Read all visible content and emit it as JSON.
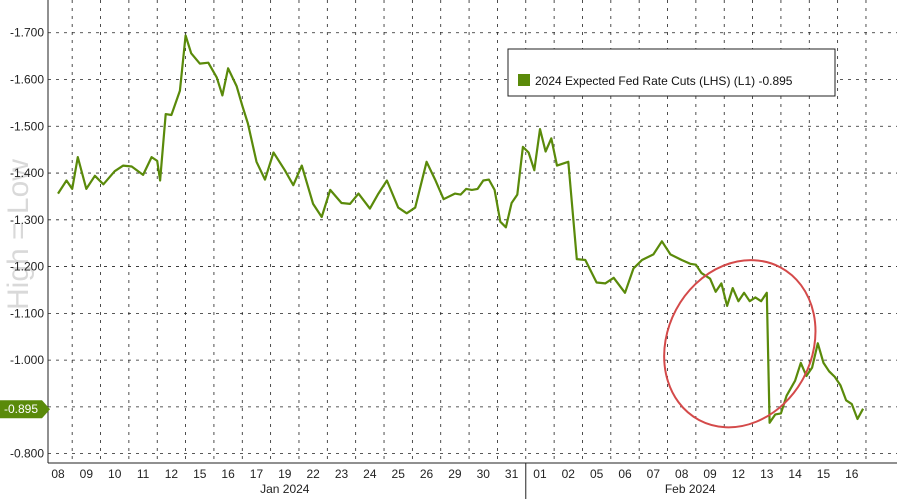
{
  "watermark": "High = Low",
  "legend": {
    "label": "2024 Expected Fed Rate Cuts (LHS) (L1) -0.895"
  },
  "current_value_label": "-0.895",
  "colors": {
    "line": "#5a8a0a",
    "legend_swatch": "#5a8a0a",
    "highlight": "#d44a4a",
    "current_tag": "#5a8a0a"
  },
  "chart_data": {
    "type": "line",
    "title": "",
    "xlabel": "",
    "ylabel": "",
    "ylim": [
      -0.78,
      -1.77
    ],
    "y_inverted": true,
    "y_ticks": [
      -1.7,
      -1.6,
      -1.5,
      -1.4,
      -1.3,
      -1.2,
      -1.1,
      -1.0,
      -0.9,
      -0.8
    ],
    "y_tick_labels": [
      "-1.700",
      "-1.600",
      "-1.500",
      "-1.400",
      "-1.300",
      "-1.200",
      "-1.100",
      "-1.000",
      "-0.900",
      "-0.800"
    ],
    "x_ticks": [
      "08",
      "09",
      "10",
      "11",
      "12",
      "15",
      "16",
      "17",
      "19",
      "22",
      "23",
      "24",
      "25",
      "26",
      "29",
      "30",
      "31",
      "01",
      "02",
      "05",
      "06",
      "07",
      "08",
      "09",
      "12",
      "13",
      "14",
      "15",
      "16"
    ],
    "month_labels": [
      "Jan 2024",
      "Feb 2024"
    ],
    "grid": true,
    "legend_position": "top-right",
    "series": [
      {
        "name": "2024 Expected Fed Rate Cuts (LHS) (L1)",
        "last_value": -0.895,
        "x": [
          0,
          0.3,
          0.5,
          0.7,
          1,
          1.3,
          1.6,
          2,
          2.3,
          2.6,
          3,
          3.3,
          3.5,
          3.6,
          3.8,
          4,
          4.3,
          4.5,
          4.7,
          5,
          5.3,
          5.6,
          5.8,
          6,
          6.3,
          6.5,
          6.7,
          7,
          7.3,
          7.6,
          8,
          8.3,
          8.6,
          9,
          9.3,
          9.6,
          10,
          10.3,
          10.6,
          11,
          11.3,
          11.6,
          12,
          12.3,
          12.6,
          13,
          13.3,
          13.6,
          14,
          14.2,
          14.4,
          14.6,
          14.8,
          15,
          15.2,
          15.4,
          15.6,
          15.8,
          16,
          16.2,
          16.4,
          16.6,
          16.8,
          17,
          17.2,
          17.4,
          17.6,
          18,
          18.3,
          18.6,
          19,
          19.3,
          19.6,
          20,
          20.3,
          20.6,
          21,
          21.3,
          21.6,
          22,
          22.3,
          22.5,
          22.7,
          23,
          23.2,
          23.4,
          23.6,
          23.8,
          24,
          24.2,
          24.4,
          24.6,
          24.8,
          25,
          25.1,
          25.3,
          25.5,
          25.7,
          26,
          26.2,
          26.4,
          26.6,
          26.8,
          27,
          27.2,
          27.4,
          27.6,
          27.8,
          28,
          28.2,
          28.4
        ],
        "values": [
          -1.36,
          -1.38,
          -1.37,
          -1.43,
          -1.37,
          -1.39,
          -1.38,
          -1.4,
          -1.42,
          -1.41,
          -1.4,
          -1.43,
          -1.43,
          -1.38,
          -1.53,
          -1.52,
          -1.58,
          -1.69,
          -1.66,
          -1.63,
          -1.64,
          -1.6,
          -1.57,
          -1.62,
          -1.59,
          -1.54,
          -1.51,
          -1.42,
          -1.39,
          -1.44,
          -1.41,
          -1.37,
          -1.42,
          -1.33,
          -1.31,
          -1.36,
          -1.34,
          -1.33,
          -1.36,
          -1.32,
          -1.36,
          -1.38,
          -1.33,
          -1.31,
          -1.33,
          -1.42,
          -1.39,
          -1.34,
          -1.36,
          -1.35,
          -1.37,
          -1.36,
          -1.37,
          -1.38,
          -1.39,
          -1.36,
          -1.3,
          -1.28,
          -1.34,
          -1.35,
          -1.46,
          -1.44,
          -1.41,
          -1.49,
          -1.45,
          -1.47,
          -1.42,
          -1.42,
          -1.22,
          -1.21,
          -1.17,
          -1.16,
          -1.18,
          -1.14,
          -1.2,
          -1.21,
          -1.23,
          -1.25,
          -1.23,
          -1.21,
          -1.21,
          -1.2,
          -1.19,
          -1.17,
          -1.15,
          -1.16,
          -1.12,
          -1.15,
          -1.13,
          -1.14,
          -1.13,
          -1.13,
          -1.13,
          -1.14,
          -0.87,
          -0.88,
          -0.89,
          -0.92,
          -0.96,
          -0.99,
          -0.97,
          -0.98,
          -1.04,
          -0.99,
          -0.98,
          -0.96,
          -0.95,
          -0.91,
          -0.91,
          -0.87,
          -0.9
        ]
      }
    ],
    "annotations": [
      {
        "type": "ellipse",
        "description": "red circle highlighting drop",
        "x_range": [
          21.5,
          26.6
        ],
        "y_range": [
          -0.85,
          -1.22
        ]
      }
    ]
  }
}
